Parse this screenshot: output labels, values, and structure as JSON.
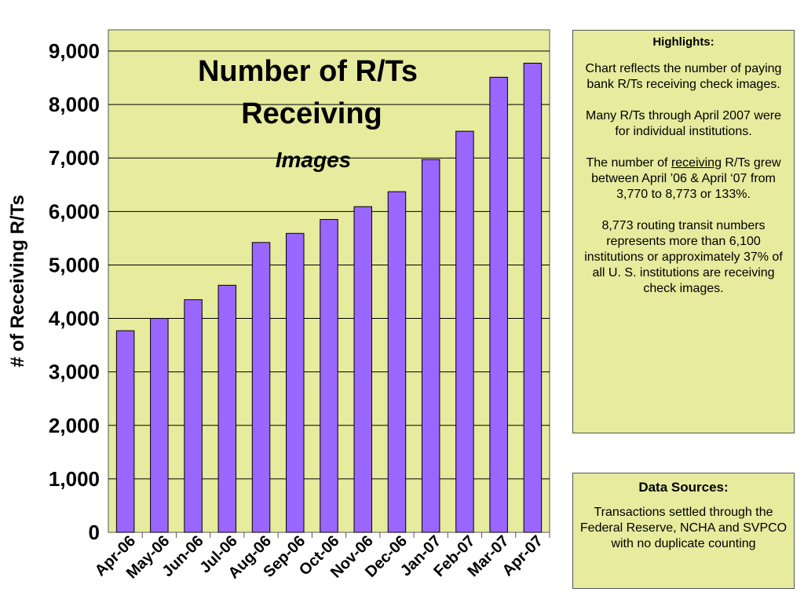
{
  "chart_data": {
    "type": "bar",
    "title": "Number of R/Ts Receiving",
    "subtitle": "Images",
    "xlabel": "",
    "ylabel": "# of Receiving R/Ts",
    "categories": [
      "Apr-06",
      "May-06",
      "Jun-06",
      "Jul-06",
      "Aug-06",
      "Sep-06",
      "Oct-06",
      "Nov-06",
      "Dec-06",
      "Jan-07",
      "Feb-07",
      "Mar-07",
      "Apr-07"
    ],
    "values": [
      3770,
      4000,
      4350,
      4620,
      5420,
      5590,
      5850,
      6090,
      6370,
      6970,
      7500,
      8510,
      8773
    ],
    "ylim": [
      0,
      9000
    ],
    "yticks": [
      "0",
      "1,000",
      "2,000",
      "3,000",
      "4,000",
      "5,000",
      "6,000",
      "7,000",
      "8,000",
      "9,000"
    ],
    "grid": true,
    "legend": "none",
    "bar_color": "#9966ff",
    "plot_background": "#e6eb9e"
  },
  "highlights": {
    "title": "Highlights:",
    "p1": "Chart reflects the number of paying bank R/Ts receiving check images.",
    "p2": "Many R/Ts through April 2007 were for individual institutions.",
    "p3_before": "The number of ",
    "p3_underlined": "receiving",
    "p3_after": " R/Ts grew between April ’06 & April ‘07 from 3,770 to 8,773 or 133%.",
    "p4": "8,773 routing transit numbers represents more than 6,100 institutions or approximately 37% of all U. S. institutions are receiving check images."
  },
  "sources": {
    "title": "Data Sources:",
    "text": "Transactions settled through the Federal Reserve, NCHA and SVPCO with no duplicate counting"
  }
}
